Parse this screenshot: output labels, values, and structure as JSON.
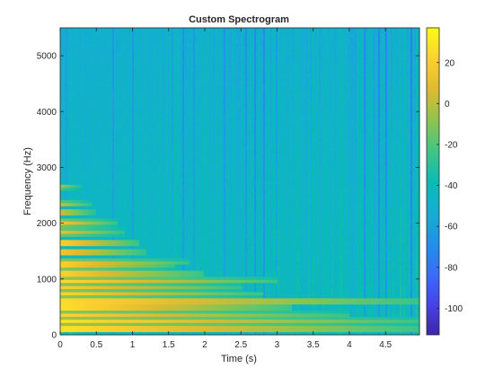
{
  "chart_data": {
    "type": "heatmap",
    "title": "Custom Spectrogram",
    "xlabel": "Time (s)",
    "ylabel": "Frequency (Hz)",
    "xlim": [
      0,
      4.97
    ],
    "ylim": [
      0,
      5500
    ],
    "x_ticks": [
      0,
      0.5,
      1,
      1.5,
      2,
      2.5,
      3,
      3.5,
      4,
      4.5
    ],
    "x_tick_labels": [
      "0",
      "0.5",
      "1",
      "1.5",
      "2",
      "2.5",
      "3",
      "3.5",
      "4",
      "4.5"
    ],
    "y_ticks": [
      0,
      1000,
      2000,
      3000,
      4000,
      5000
    ],
    "y_tick_labels": [
      "0",
      "1000",
      "2000",
      "3000",
      "4000",
      "5000"
    ],
    "colorbar": {
      "limits": [
        -113,
        37
      ],
      "ticks": [
        20,
        0,
        -20,
        -40,
        -60,
        -80,
        -100
      ],
      "tick_labels": [
        "20",
        "0",
        "-20",
        "-40",
        "-60",
        "-80",
        "-100"
      ],
      "colormap": "parula"
    },
    "background_level_db": -47,
    "harmonics": [
      {
        "frequency_hz": 110,
        "peak_db": 28,
        "decay_end_s": 4.97
      },
      {
        "frequency_hz": 250,
        "peak_db": 30,
        "decay_end_s": 4.97
      },
      {
        "frequency_hz": 370,
        "peak_db": 24,
        "decay_end_s": 4.0
      },
      {
        "frequency_hz": 500,
        "peak_db": 28,
        "decay_end_s": 3.2
      },
      {
        "frequency_hz": 600,
        "peak_db": 26,
        "decay_end_s": 4.97
      },
      {
        "frequency_hz": 730,
        "peak_db": 24,
        "decay_end_s": 2.8
      },
      {
        "frequency_hz": 850,
        "peak_db": 22,
        "decay_end_s": 2.5
      },
      {
        "frequency_hz": 980,
        "peak_db": 26,
        "decay_end_s": 3.0
      },
      {
        "frequency_hz": 1100,
        "peak_db": 22,
        "decay_end_s": 2.0
      },
      {
        "frequency_hz": 1230,
        "peak_db": 20,
        "decay_end_s": 1.6
      },
      {
        "frequency_hz": 1310,
        "peak_db": 22,
        "decay_end_s": 1.8
      },
      {
        "frequency_hz": 1480,
        "peak_db": 16,
        "decay_end_s": 1.2
      },
      {
        "frequency_hz": 1650,
        "peak_db": 22,
        "decay_end_s": 1.1
      },
      {
        "frequency_hz": 1850,
        "peak_db": 12,
        "decay_end_s": 0.9
      },
      {
        "frequency_hz": 2000,
        "peak_db": 18,
        "decay_end_s": 0.8
      },
      {
        "frequency_hz": 2200,
        "peak_db": 4,
        "decay_end_s": 0.5
      },
      {
        "frequency_hz": 2350,
        "peak_db": 6,
        "decay_end_s": 0.45
      },
      {
        "frequency_hz": 2650,
        "peak_db": -4,
        "decay_end_s": 0.3
      }
    ]
  }
}
